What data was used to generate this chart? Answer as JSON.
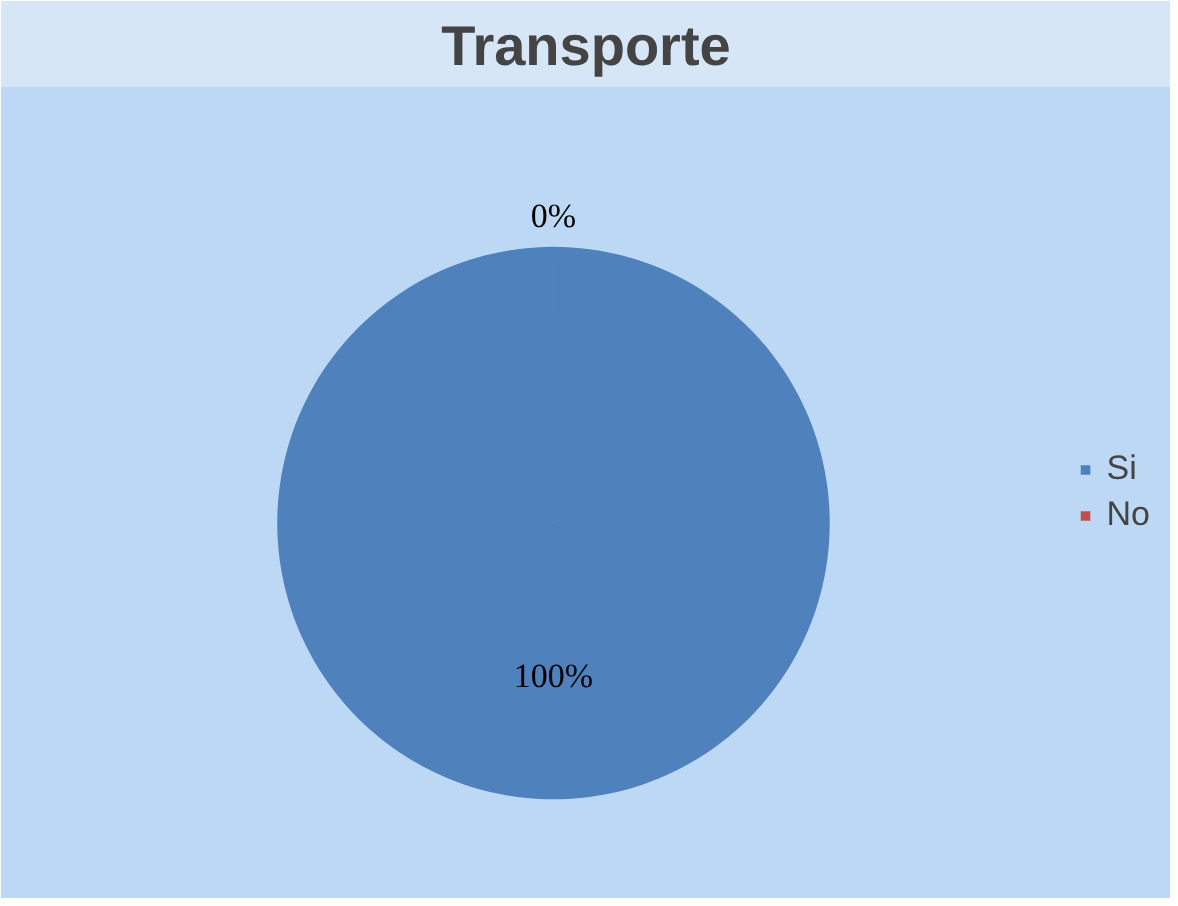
{
  "chart_data": {
    "type": "pie",
    "title": "Transporte",
    "categories": [
      "Si",
      "No"
    ],
    "values": [
      100,
      0
    ],
    "colors": [
      "#4f81bd",
      "#c0504d"
    ],
    "value_labels": [
      "100%",
      "0%"
    ],
    "legend": "right"
  }
}
